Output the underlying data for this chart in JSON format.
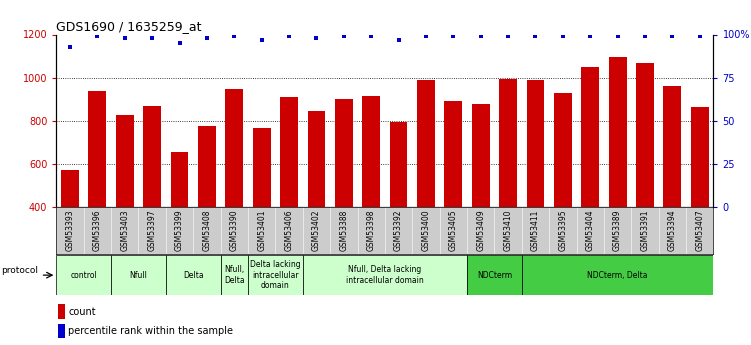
{
  "title": "GDS1690 / 1635259_at",
  "samples": [
    "GSM53393",
    "GSM53396",
    "GSM53403",
    "GSM53397",
    "GSM53399",
    "GSM53408",
    "GSM53390",
    "GSM53401",
    "GSM53406",
    "GSM53402",
    "GSM53388",
    "GSM53398",
    "GSM53392",
    "GSM53400",
    "GSM53405",
    "GSM53409",
    "GSM53410",
    "GSM53411",
    "GSM53395",
    "GSM53404",
    "GSM53389",
    "GSM53391",
    "GSM53394",
    "GSM53407"
  ],
  "counts": [
    570,
    940,
    825,
    868,
    655,
    775,
    945,
    765,
    910,
    845,
    900,
    915,
    795,
    990,
    890,
    878,
    995,
    990,
    930,
    1050,
    1095,
    1070,
    960,
    863
  ],
  "percentile": [
    93,
    99,
    98,
    98,
    95,
    98,
    99,
    97,
    99,
    98,
    99,
    99,
    97,
    99,
    99,
    99,
    99,
    99,
    99,
    99,
    99,
    99,
    99,
    99
  ],
  "bar_color": "#cc0000",
  "dot_color": "#0000cc",
  "ylim_left": [
    400,
    1200
  ],
  "ylim_right": [
    0,
    100
  ],
  "yticks_left": [
    400,
    600,
    800,
    1000,
    1200
  ],
  "yticks_right": [
    0,
    25,
    50,
    75,
    100
  ],
  "grid_values": [
    600,
    800,
    1000
  ],
  "protocol_groups": [
    {
      "label": "control",
      "start": 0,
      "end": 2,
      "color": "#ccffcc"
    },
    {
      "label": "Nfull",
      "start": 2,
      "end": 4,
      "color": "#ccffcc"
    },
    {
      "label": "Delta",
      "start": 4,
      "end": 6,
      "color": "#ccffcc"
    },
    {
      "label": "Nfull,\nDelta",
      "start": 6,
      "end": 7,
      "color": "#ccffcc"
    },
    {
      "label": "Delta lacking\nintracellular\ndomain",
      "start": 7,
      "end": 9,
      "color": "#ccffcc"
    },
    {
      "label": "Nfull, Delta lacking\nintracellular domain",
      "start": 9,
      "end": 15,
      "color": "#ccffcc"
    },
    {
      "label": "NDCterm",
      "start": 15,
      "end": 17,
      "color": "#44cc44"
    },
    {
      "label": "NDCterm, Delta",
      "start": 17,
      "end": 24,
      "color": "#44cc44"
    }
  ],
  "bg_color": "#cccccc",
  "plot_bg": "#ffffff",
  "light_green": "#ccffcc",
  "dark_green": "#44cc44"
}
